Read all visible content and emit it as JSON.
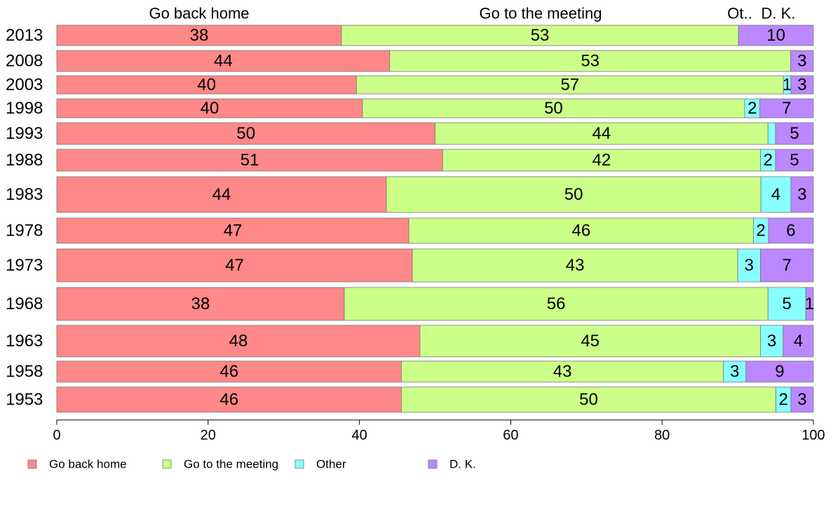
{
  "chart_data": {
    "type": "bar",
    "orientation": "horizontal",
    "stacked": true,
    "categories": [
      "2013",
      "2008",
      "2003",
      "1998",
      "1993",
      "1988",
      "1983",
      "1978",
      "1973",
      "1968",
      "1963",
      "1958",
      "1953"
    ],
    "series": [
      {
        "name": "Go back home",
        "color": "#ff8888",
        "values": [
          38,
          44,
          40,
          40,
          50,
          51,
          44,
          47,
          47,
          38,
          48,
          46,
          46
        ]
      },
      {
        "name": "Go to the meeting",
        "color": "#ccff88",
        "values": [
          53,
          53,
          57,
          50,
          44,
          42,
          50,
          46,
          43,
          56,
          45,
          43,
          50
        ]
      },
      {
        "name": "Other",
        "color": "#88ffff",
        "values": [
          0,
          0,
          1,
          2,
          1,
          2,
          4,
          2,
          3,
          5,
          3,
          3,
          2
        ]
      },
      {
        "name": "D. K.",
        "color": "#bb88ff",
        "values": [
          10,
          3,
          3,
          7,
          5,
          5,
          3,
          6,
          7,
          1,
          4,
          9,
          3
        ]
      }
    ],
    "data_labels": [
      [
        "38",
        "53",
        "",
        "10"
      ],
      [
        "44",
        "53",
        "",
        "3"
      ],
      [
        "40",
        "57",
        "1",
        "3"
      ],
      [
        "40",
        "50",
        "2",
        "7"
      ],
      [
        "50",
        "44",
        "",
        "5"
      ],
      [
        "51",
        "42",
        "2",
        "5"
      ],
      [
        "44",
        "50",
        "4",
        "3"
      ],
      [
        "47",
        "46",
        "2",
        "6"
      ],
      [
        "47",
        "43",
        "3",
        "7"
      ],
      [
        "38",
        "56",
        "5",
        "1"
      ],
      [
        "48",
        "45",
        "3",
        "4"
      ],
      [
        "46",
        "43",
        "3",
        "9"
      ],
      [
        "46",
        "50",
        "2",
        "3"
      ]
    ],
    "top_labels": [
      "Go back home",
      "Go to the meeting",
      "Ot..",
      "D. K."
    ],
    "x_ticks": [
      "0",
      "20",
      "40",
      "60",
      "80",
      "100"
    ],
    "xlim": [
      0,
      100
    ],
    "legend_position": "bottom",
    "grid": false
  }
}
